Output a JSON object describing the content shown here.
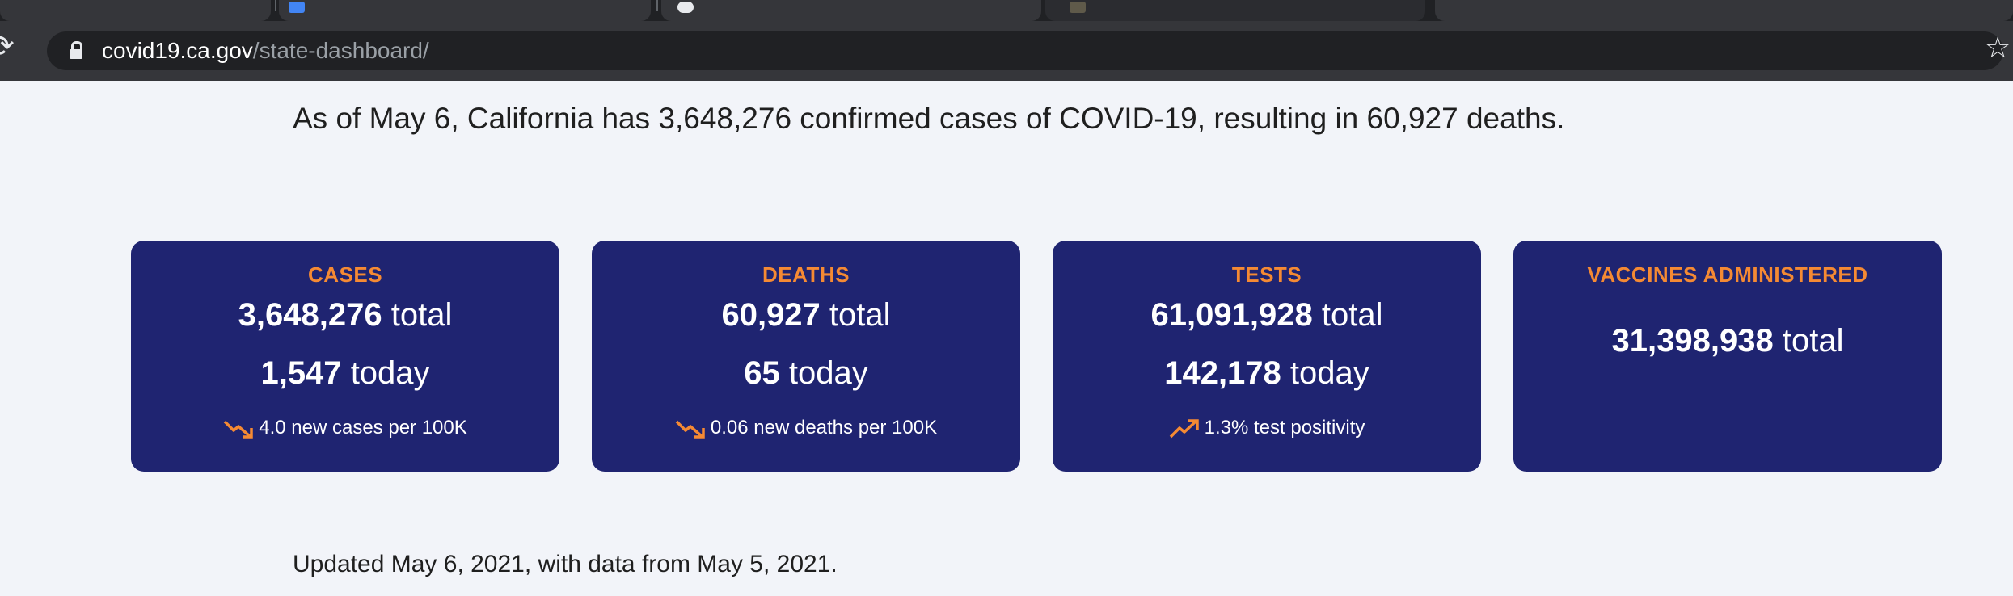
{
  "browser": {
    "url_domain": "covid19.ca.gov",
    "url_path": "/state-dashboard/"
  },
  "summary": "As of May 6, California has 3,648,276 confirmed cases of COVID-19, resulting in 60,927 deaths.",
  "cards": [
    {
      "title": "CASES",
      "total_value": "3,648,276",
      "total_unit": "total",
      "today_value": "1,547",
      "today_unit": "today",
      "metric": "4.0 new cases per 100K",
      "trend_icon": "trend-down-icon"
    },
    {
      "title": "DEATHS",
      "total_value": "60,927",
      "total_unit": "total",
      "today_value": "65",
      "today_unit": "today",
      "metric": "0.06 new deaths per 100K",
      "trend_icon": "trend-down-icon"
    },
    {
      "title": "TESTS",
      "total_value": "61,091,928",
      "total_unit": "total",
      "today_value": "142,178",
      "today_unit": "today",
      "metric": "1.3% test positivity",
      "trend_icon": "trend-up-icon"
    },
    {
      "title": "VACCINES ADMINISTERED",
      "total_value": "31,398,938",
      "total_unit": "total"
    }
  ],
  "updated": "Updated May 6, 2021, with data from May 5, 2021.",
  "colors": {
    "card_background": "#1f2471",
    "accent_orange": "#f58a33",
    "page_background": "#f2f4f9"
  }
}
